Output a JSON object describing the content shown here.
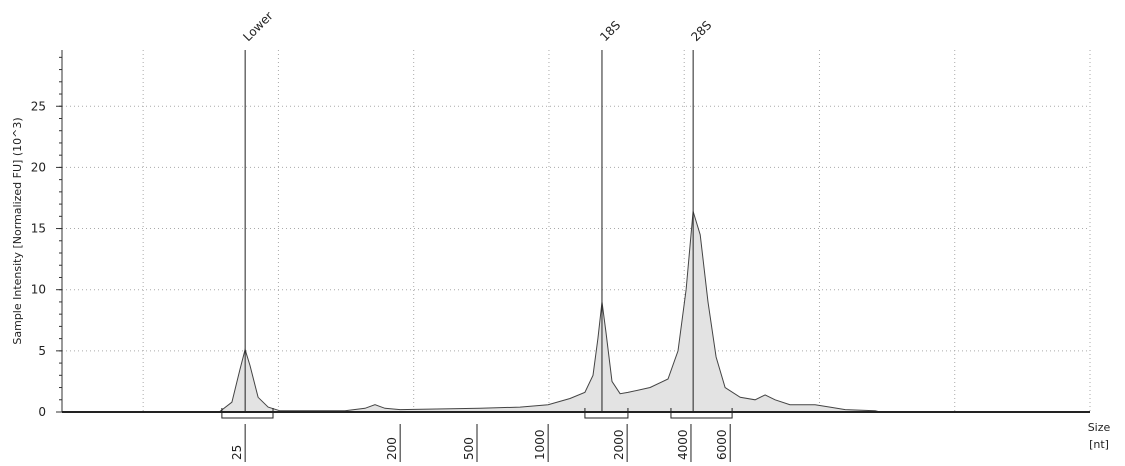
{
  "chart_data": {
    "type": "electropherogram",
    "y_label": "Sample Intensity [Normalized FU] (10^3)",
    "x_label": [
      "Size",
      "[nt]"
    ],
    "ylim": [
      0,
      29.6
    ],
    "yticks": [
      0,
      5,
      10,
      15,
      20,
      25
    ],
    "xlim": [
      17,
      55
    ],
    "xgrid": [
      20,
      25,
      30,
      35,
      40,
      45,
      50,
      55
    ],
    "xticks": [
      {
        "value": 23.77,
        "label": "25"
      },
      {
        "value": 29.5,
        "label": "200"
      },
      {
        "value": 32.34,
        "label": "500"
      },
      {
        "value": 34.97,
        "label": "1000"
      },
      {
        "value": 37.89,
        "label": "2000"
      },
      {
        "value": 40.25,
        "label": "4000"
      },
      {
        "value": 41.7,
        "label": "6000"
      }
    ],
    "grid": true,
    "color": "#e3e3e3",
    "x": [
      17.0,
      22.84,
      23.28,
      23.58,
      23.77,
      23.95,
      24.25,
      24.62,
      25.06,
      27.46,
      28.2,
      28.57,
      28.94,
      29.5,
      32.45,
      33.93,
      34.97,
      35.78,
      36.33,
      36.63,
      36.81,
      36.96,
      37.11,
      37.33,
      37.63,
      37.92,
      38.74,
      39.4,
      39.77,
      40.07,
      40.33,
      40.59,
      40.88,
      41.18,
      41.51,
      42.07,
      42.62,
      42.99,
      43.36,
      43.91,
      44.84,
      45.39,
      45.95,
      47.06,
      47.24,
      55.0
    ],
    "values": [
      0,
      0.05,
      0.8,
      3.5,
      5.1,
      3.8,
      1.2,
      0.4,
      0.1,
      0.1,
      0.3,
      0.6,
      0.3,
      0.2,
      0.3,
      0.4,
      0.6,
      1.1,
      1.6,
      3,
      6,
      9,
      6.5,
      2.5,
      1.5,
      1.6,
      2.0,
      2.7,
      5,
      10,
      16.4,
      14.5,
      9,
      4.5,
      2,
      1.2,
      1.0,
      1.4,
      1.0,
      0.6,
      0.6,
      0.4,
      0.2,
      0.1,
      0,
      0
    ],
    "peaks": [
      {
        "label": "Lower",
        "x": 23.77,
        "start": 22.91,
        "end": 24.8
      },
      {
        "label": "18S",
        "x": 36.96,
        "start": 36.33,
        "end": 37.92
      },
      {
        "label": "28S",
        "x": 40.33,
        "start": 39.51,
        "end": 41.77
      }
    ]
  }
}
